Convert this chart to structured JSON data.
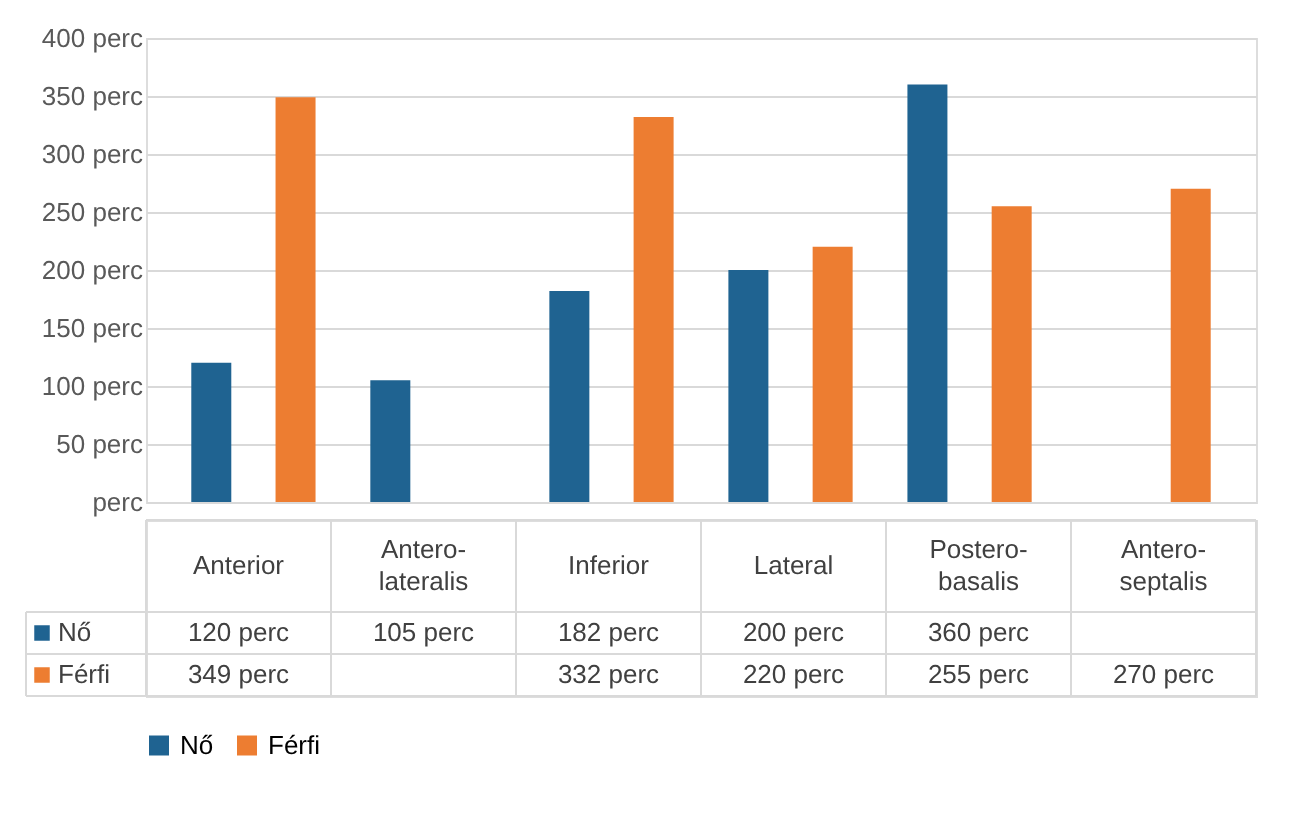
{
  "chart_data": {
    "type": "bar",
    "categories": [
      "Anterior",
      "Antero-lateralis",
      "Inferior",
      "Lateral",
      "Postero-basalis",
      "Antero-septalis"
    ],
    "series": [
      {
        "name": "Nő",
        "color": "#1f6391",
        "values": [
          120,
          105,
          182,
          200,
          360,
          null
        ],
        "value_labels": [
          "120 perc",
          "105 perc",
          "182 perc",
          "200 perc",
          "360 perc",
          null
        ]
      },
      {
        "name": "Férfi",
        "color": "#ed7d31",
        "values": [
          349,
          null,
          332,
          220,
          255,
          270
        ],
        "value_labels": [
          "349 perc",
          null,
          "332 perc",
          "220 perc",
          "255 perc",
          "270 perc"
        ]
      }
    ],
    "ylim": [
      0,
      400
    ],
    "yticks": [
      {
        "value": 0,
        "label": "perc"
      },
      {
        "value": 50,
        "label": "50 perc"
      },
      {
        "value": 100,
        "label": "100 perc"
      },
      {
        "value": 150,
        "label": "150 perc"
      },
      {
        "value": 200,
        "label": "200 perc"
      },
      {
        "value": 250,
        "label": "250 perc"
      },
      {
        "value": 300,
        "label": "300 perc"
      },
      {
        "value": 350,
        "label": "350 perc"
      },
      {
        "value": 400,
        "label": "400 perc"
      }
    ],
    "grid": "y",
    "legend": "bottom",
    "marker": "square"
  }
}
